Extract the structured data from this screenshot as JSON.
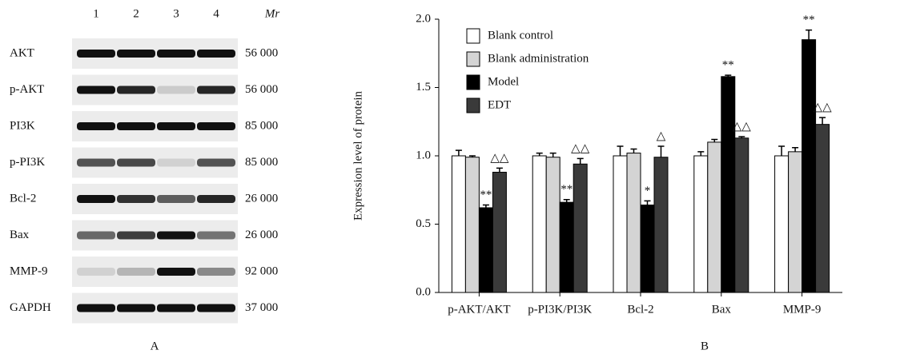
{
  "blot": {
    "lanes": [
      "1",
      "2",
      "3",
      "4"
    ],
    "mr_header": "Mr",
    "rows": [
      {
        "label": "AKT",
        "mr": "56 000"
      },
      {
        "label": "p-AKT",
        "mr": "56 000"
      },
      {
        "label": "PI3K",
        "mr": "85 000"
      },
      {
        "label": "p-PI3K",
        "mr": "85 000"
      },
      {
        "label": "Bcl-2",
        "mr": "26 000"
      },
      {
        "label": "Bax",
        "mr": "26 000"
      },
      {
        "label": "MMP-9",
        "mr": "92 000"
      },
      {
        "label": "GAPDH",
        "mr": "37 000"
      }
    ],
    "panel": "A"
  },
  "chart_data": {
    "type": "bar",
    "panel": "B",
    "y_label": "Expression level of protein",
    "categories": [
      "p-AKT/AKT",
      "p-PI3K/PI3K",
      "Bcl-2",
      "Bax",
      "MMP-9"
    ],
    "series": [
      {
        "name": "Blank control",
        "color": "#ffffff",
        "values": [
          1.0,
          1.0,
          1.0,
          1.0,
          1.0
        ],
        "errors": [
          0.04,
          0.02,
          0.07,
          0.03,
          0.07
        ]
      },
      {
        "name": "Blank administration",
        "color": "#d4d4d4",
        "values": [
          0.99,
          0.99,
          1.02,
          1.1,
          1.03
        ],
        "errors": [
          0.01,
          0.03,
          0.03,
          0.02,
          0.03
        ]
      },
      {
        "name": "Model",
        "color": "#000000",
        "values": [
          0.62,
          0.66,
          0.64,
          1.58,
          1.85
        ],
        "errors": [
          0.02,
          0.02,
          0.03,
          0.01,
          0.07
        ],
        "marks": [
          "**",
          "**",
          "*",
          "**",
          "**"
        ]
      },
      {
        "name": "EDT",
        "color": "#3a3a3a",
        "values": [
          0.88,
          0.94,
          0.99,
          1.13,
          1.23
        ],
        "errors": [
          0.03,
          0.04,
          0.08,
          0.01,
          0.05
        ],
        "marks": [
          "△△",
          "△△",
          "△",
          "△△",
          "△△"
        ]
      }
    ],
    "ylim": [
      0,
      2
    ],
    "yticks": [
      {
        "value": 0,
        "label": "0.0"
      },
      {
        "value": 0.5,
        "label": "0.5"
      },
      {
        "value": 1,
        "label": "1.0"
      },
      {
        "value": 1.5,
        "label": "1.5"
      },
      {
        "value": 2,
        "label": "2.0"
      }
    ],
    "legend": "top-left"
  }
}
